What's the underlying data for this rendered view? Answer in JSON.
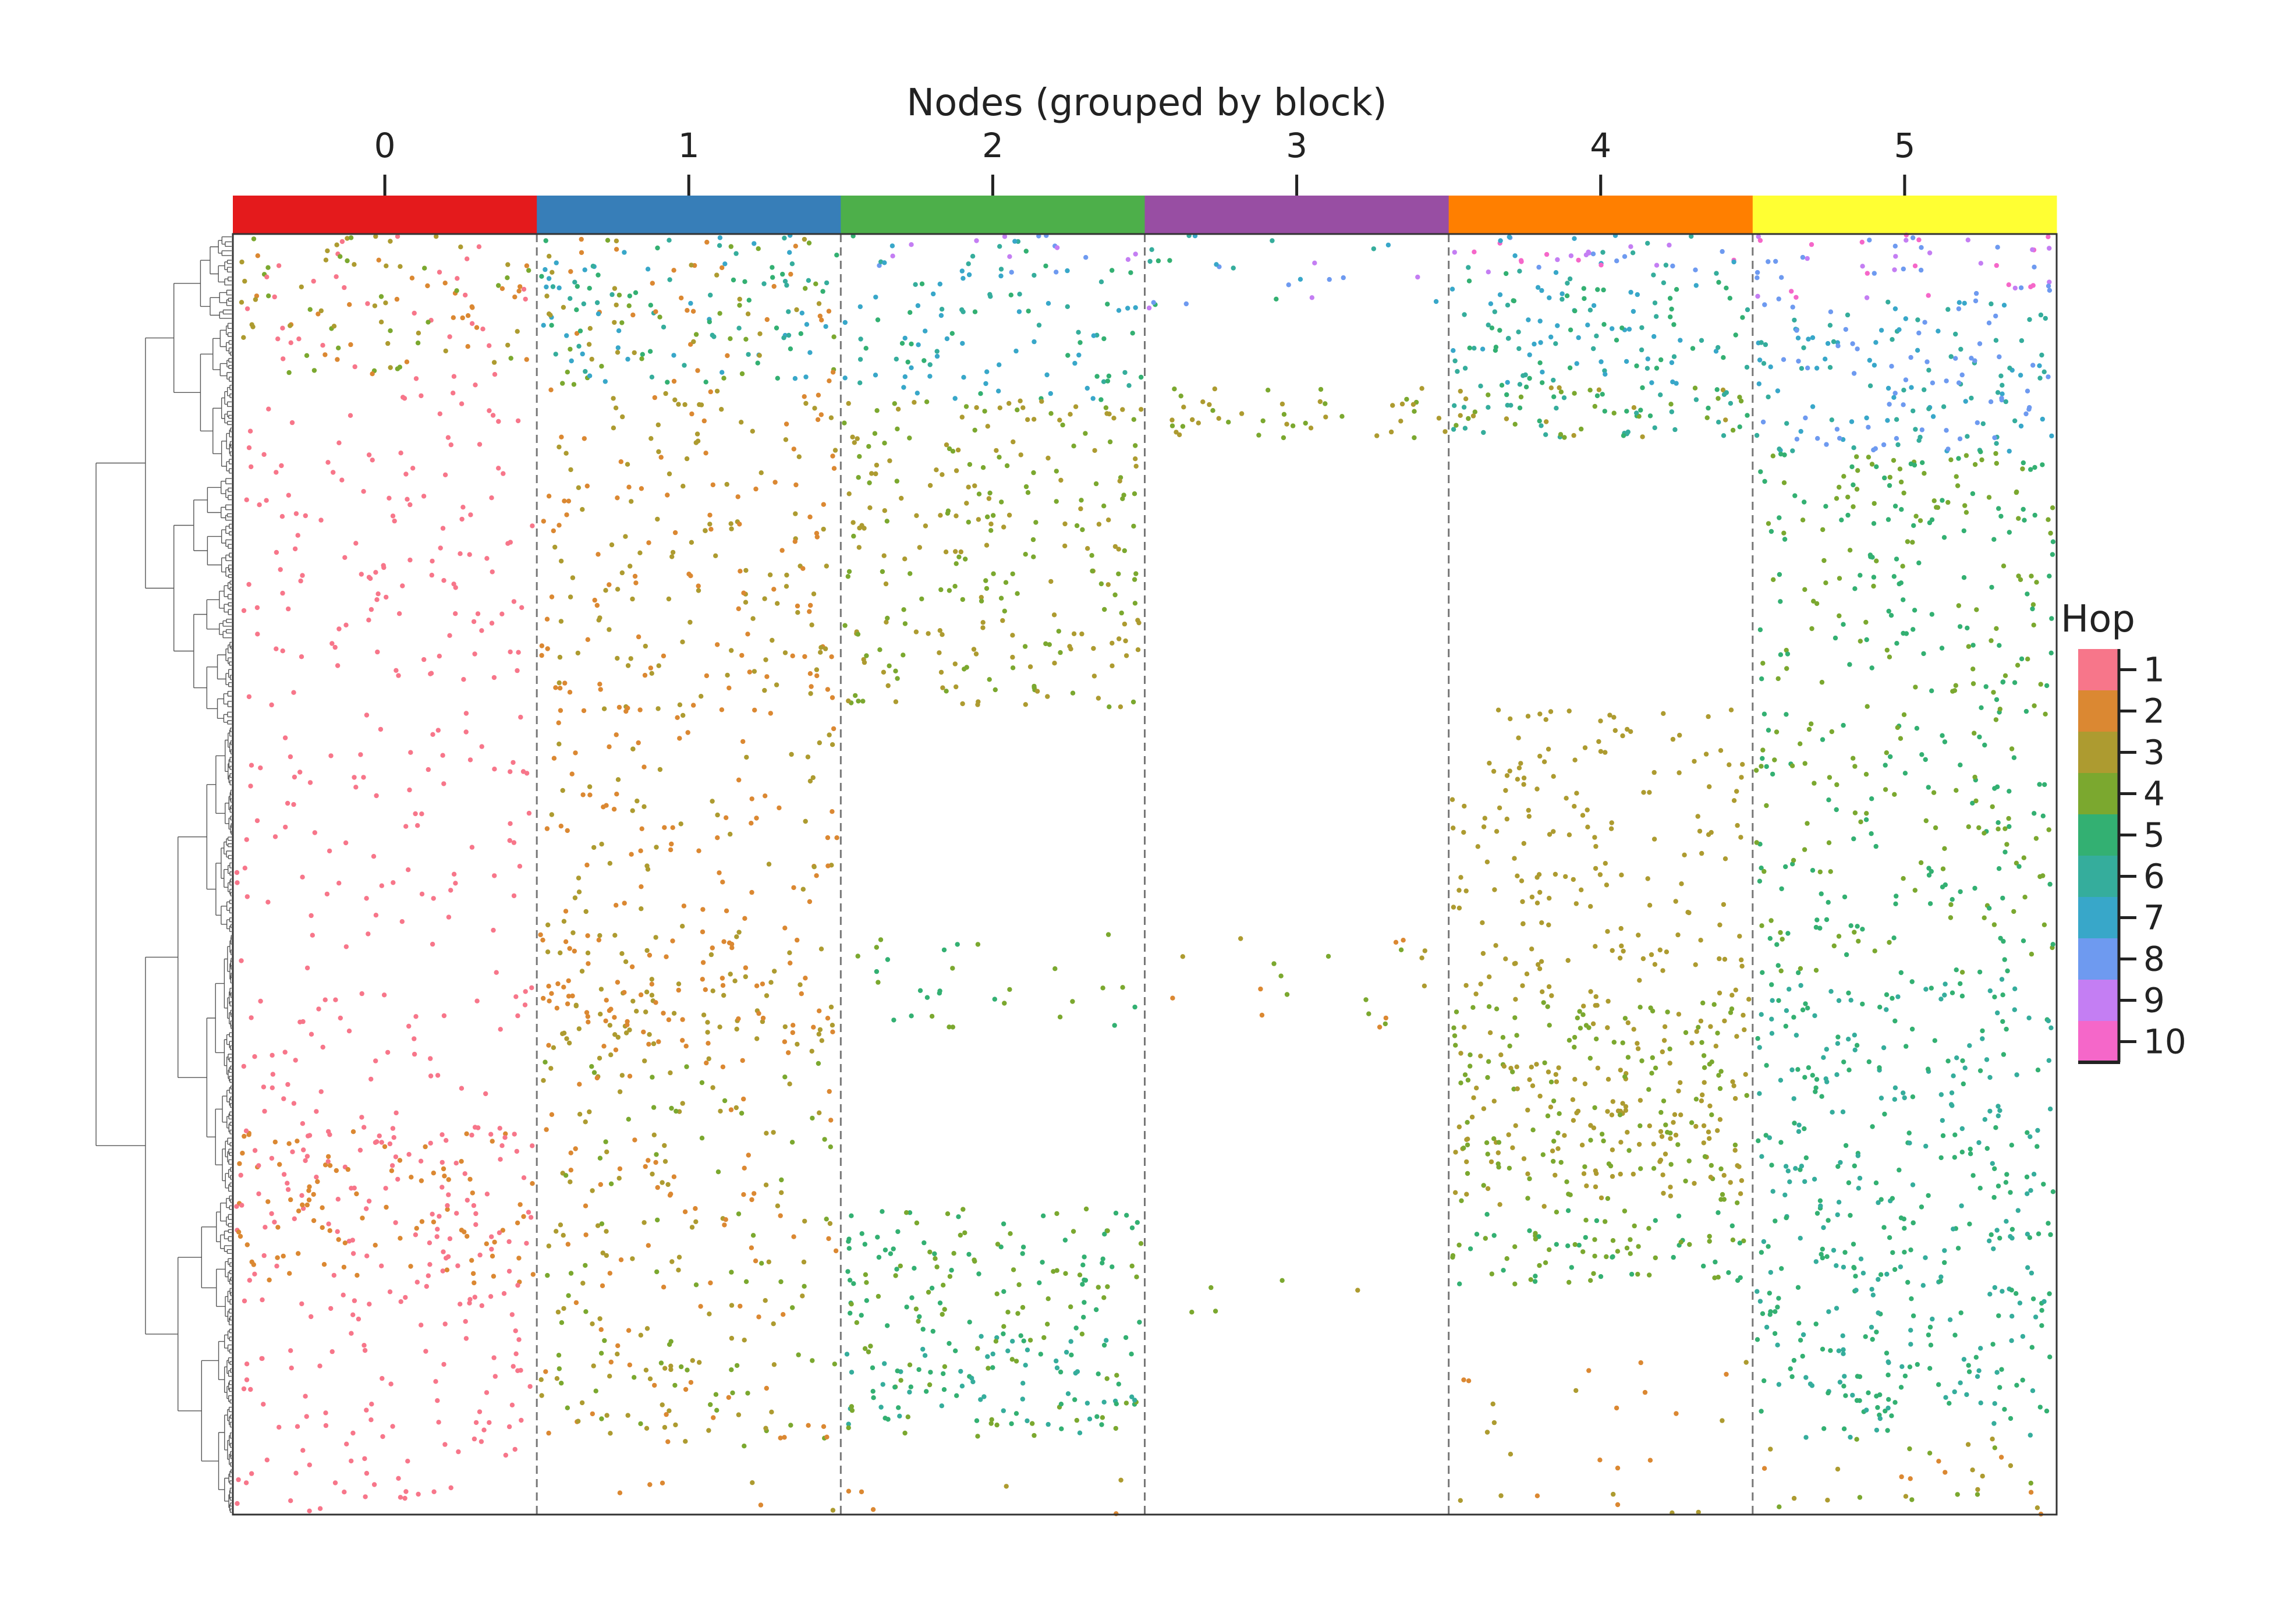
{
  "chart_data": {
    "type": "scatter",
    "title": "Nodes (grouped by block)",
    "blocks": [
      {
        "label": "0",
        "color": "#e41a1c"
      },
      {
        "label": "1",
        "color": "#377eb8"
      },
      {
        "label": "2",
        "color": "#4daf4a"
      },
      {
        "label": "3",
        "color": "#984ea3"
      },
      {
        "label": "4",
        "color": "#ff7f00"
      },
      {
        "label": "5",
        "color": "#ffff33"
      }
    ],
    "legend": {
      "title": "Hop",
      "position": "right",
      "entries": [
        {
          "hop": "1",
          "color": "#f7768a"
        },
        {
          "hop": "2",
          "color": "#db8832"
        },
        {
          "hop": "3",
          "color": "#ad9b30"
        },
        {
          "hop": "4",
          "color": "#7ba82f"
        },
        {
          "hop": "5",
          "color": "#33b072"
        },
        {
          "hop": "6",
          "color": "#35ad9c"
        },
        {
          "hop": "7",
          "color": "#38a7c9"
        },
        {
          "hop": "8",
          "color": "#6e9af0"
        },
        {
          "hop": "9",
          "color": "#c47ef3"
        },
        {
          "hop": "10",
          "color": "#f567c9"
        }
      ]
    },
    "row_range": [
      0,
      1
    ],
    "separators": "dashed",
    "dendrogram": "left",
    "hop_bands": [
      {
        "block": 0,
        "rows": [
          0.0,
          0.11
        ],
        "hops": [
          1,
          2,
          3,
          4
        ],
        "count": 120
      },
      {
        "block": 0,
        "rows": [
          0.11,
          0.7
        ],
        "hops": [
          1
        ],
        "count": 270
      },
      {
        "block": 0,
        "rows": [
          0.7,
          0.82
        ],
        "hops": [
          1,
          2
        ],
        "count": 200
      },
      {
        "block": 0,
        "rows": [
          0.82,
          1.0
        ],
        "hops": [
          1
        ],
        "count": 110
      },
      {
        "block": 1,
        "rows": [
          0.0,
          0.12
        ],
        "hops": [
          2,
          3,
          4,
          5,
          6,
          7
        ],
        "count": 180
      },
      {
        "block": 1,
        "rows": [
          0.12,
          0.58
        ],
        "hops": [
          2,
          3
        ],
        "count": 360
      },
      {
        "block": 1,
        "rows": [
          0.58,
          0.64
        ],
        "hops": [
          2,
          3
        ],
        "count": 110
      },
      {
        "block": 1,
        "rows": [
          0.64,
          0.95
        ],
        "hops": [
          2,
          3,
          4
        ],
        "count": 250
      },
      {
        "block": 1,
        "rows": [
          0.95,
          1.0
        ],
        "hops": [
          2,
          3
        ],
        "count": 6
      },
      {
        "block": 2,
        "rows": [
          0.0,
          0.03
        ],
        "hops": [
          5,
          6,
          7,
          8,
          9
        ],
        "count": 30
      },
      {
        "block": 2,
        "rows": [
          0.03,
          0.13
        ],
        "hops": [
          5,
          6,
          7
        ],
        "count": 90
      },
      {
        "block": 2,
        "rows": [
          0.13,
          0.37
        ],
        "hops": [
          3,
          4
        ],
        "count": 260
      },
      {
        "block": 2,
        "rows": [
          0.54,
          0.62
        ],
        "hops": [
          4,
          5
        ],
        "count": 30
      },
      {
        "block": 2,
        "rows": [
          0.76,
          0.86
        ],
        "hops": [
          4,
          5
        ],
        "count": 120
      },
      {
        "block": 2,
        "rows": [
          0.86,
          0.94
        ],
        "hops": [
          4,
          5,
          6
        ],
        "count": 120
      },
      {
        "block": 2,
        "rows": [
          0.97,
          1.0
        ],
        "hops": [
          2,
          3
        ],
        "count": 6
      },
      {
        "block": 3,
        "rows": [
          0.0,
          0.06
        ],
        "hops": [
          5,
          6,
          7,
          8,
          9
        ],
        "count": 25
      },
      {
        "block": 3,
        "rows": [
          0.12,
          0.16
        ],
        "hops": [
          3,
          4
        ],
        "count": 45
      },
      {
        "block": 3,
        "rows": [
          0.55,
          0.63
        ],
        "hops": [
          2,
          3,
          4
        ],
        "count": 20
      },
      {
        "block": 3,
        "rows": [
          0.8,
          0.85
        ],
        "hops": [
          3,
          4
        ],
        "count": 5
      },
      {
        "block": 4,
        "rows": [
          0.0,
          0.03
        ],
        "hops": [
          6,
          7,
          8,
          9,
          10
        ],
        "count": 40
      },
      {
        "block": 4,
        "rows": [
          0.03,
          0.12
        ],
        "hops": [
          5,
          6,
          7
        ],
        "count": 120
      },
      {
        "block": 4,
        "rows": [
          0.12,
          0.16
        ],
        "hops": [
          3,
          4,
          5,
          6
        ],
        "count": 80
      },
      {
        "block": 4,
        "rows": [
          0.37,
          0.6
        ],
        "hops": [
          3
        ],
        "count": 180
      },
      {
        "block": 4,
        "rows": [
          0.6,
          0.76
        ],
        "hops": [
          3,
          4
        ],
        "count": 280
      },
      {
        "block": 4,
        "rows": [
          0.76,
          0.82
        ],
        "hops": [
          4,
          5
        ],
        "count": 80
      },
      {
        "block": 4,
        "rows": [
          0.88,
          1.0
        ],
        "hops": [
          2,
          3
        ],
        "count": 25
      },
      {
        "block": 5,
        "rows": [
          0.0,
          0.05
        ],
        "hops": [
          8,
          9,
          10
        ],
        "count": 50
      },
      {
        "block": 5,
        "rows": [
          0.05,
          0.17
        ],
        "hops": [
          6,
          7,
          8
        ],
        "count": 170
      },
      {
        "block": 5,
        "rows": [
          0.17,
          0.58
        ],
        "hops": [
          4,
          5
        ],
        "count": 380
      },
      {
        "block": 5,
        "rows": [
          0.58,
          0.94
        ],
        "hops": [
          5,
          6
        ],
        "count": 420
      },
      {
        "block": 5,
        "rows": [
          0.94,
          1.0
        ],
        "hops": [
          2,
          3,
          4
        ],
        "count": 30
      }
    ]
  }
}
